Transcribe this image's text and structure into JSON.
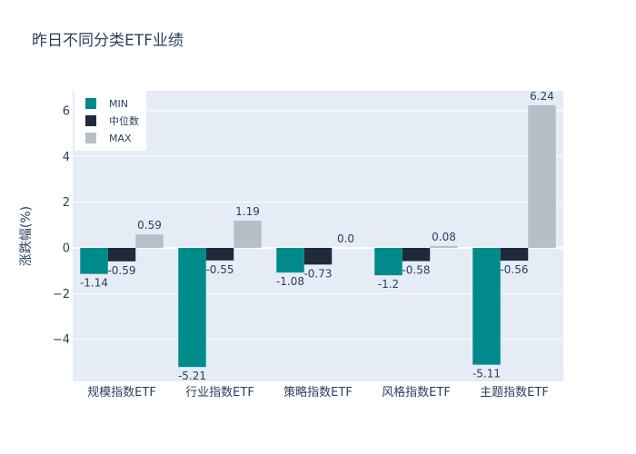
{
  "colors": {
    "plot_bg": "#e5ecf6",
    "grid": "#ffffff",
    "MIN": "#008b8b",
    "中位数": "#1f2a3c",
    "MAX": "#b6bec6"
  },
  "chart_data": {
    "type": "bar",
    "title": "昨日不同分类ETF业绩",
    "xlabel": "",
    "ylabel": "涨跌幅(%)",
    "categories": [
      "规模指数ETF",
      "行业指数ETF",
      "策略指数ETF",
      "风格指数ETF",
      "主题指数ETF"
    ],
    "series": [
      {
        "name": "MIN",
        "values": [
          -1.14,
          -5.21,
          -1.08,
          -1.2,
          -5.11
        ],
        "labels": [
          "-1.14",
          "-5.21",
          "-1.08",
          "-1.2",
          "-5.11"
        ]
      },
      {
        "name": "中位数",
        "values": [
          -0.59,
          -0.55,
          -0.73,
          -0.58,
          -0.56
        ],
        "labels": [
          "-0.59",
          "-0.55",
          "-0.73",
          "-0.58",
          "-0.56"
        ]
      },
      {
        "name": "MAX",
        "values": [
          0.59,
          1.19,
          0.0,
          0.08,
          6.24
        ],
        "labels": [
          "0.59",
          "1.19",
          "0.0",
          "0.08",
          "6.24"
        ]
      }
    ],
    "yticks": [
      -4,
      -2,
      0,
      2,
      4,
      6
    ],
    "ytick_labels": [
      "−4",
      "−2",
      "0",
      "2",
      "4",
      "6"
    ],
    "ylim": [
      -5.84,
      6.87
    ],
    "grid": true,
    "legend_position": "top-left"
  }
}
